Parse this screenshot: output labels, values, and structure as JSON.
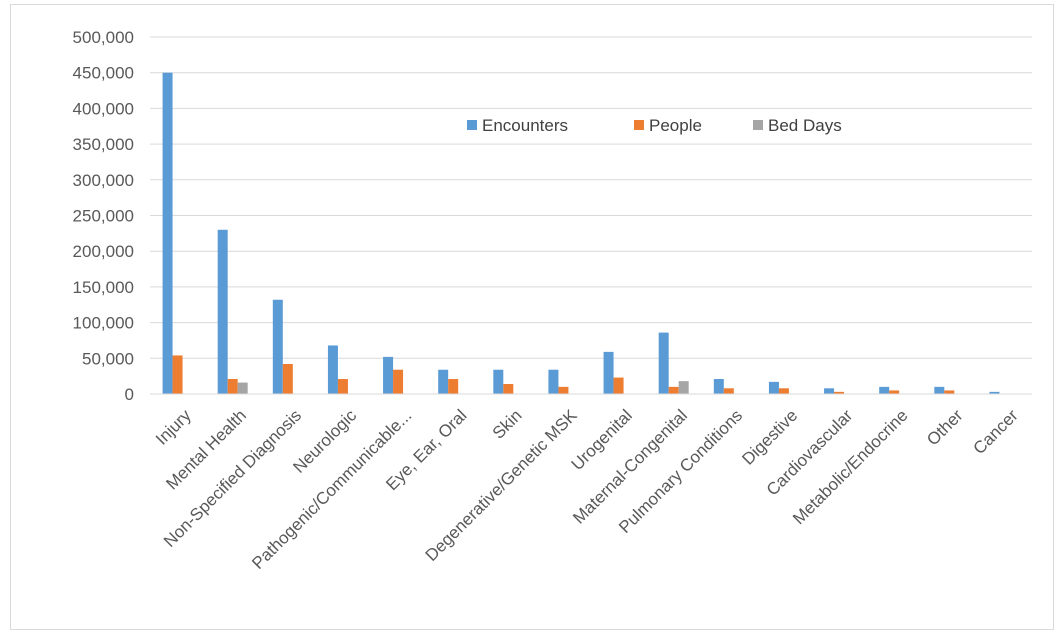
{
  "chart_data": {
    "type": "bar",
    "categories": [
      "Injury",
      "Mental Health",
      "Non-Specified Diagnosis",
      "Neurologic",
      "Pathogenic/Communicable...",
      "Eye, Ear, Oral",
      "Skin",
      "Degenerative/Genetic MSK",
      "Urogenital",
      "Maternal-Congenital",
      "Pulmonary Conditions",
      "Digestive",
      "Cardiovascular",
      "Metabolic/Endocrine",
      "Other",
      "Cancer"
    ],
    "series": [
      {
        "name": "Encounters",
        "color": "#5b9bd5",
        "values": [
          450000,
          230000,
          132000,
          68000,
          52000,
          34000,
          34000,
          34000,
          59000,
          86000,
          21000,
          17000,
          8000,
          10000,
          10000,
          3000
        ]
      },
      {
        "name": "People",
        "color": "#ed7d31",
        "values": [
          54000,
          21000,
          42000,
          21000,
          34000,
          21000,
          14000,
          10000,
          23000,
          10000,
          8000,
          8000,
          3000,
          5000,
          5000,
          0
        ]
      },
      {
        "name": "Bed Days",
        "color": "#a5a5a5",
        "values": [
          0,
          16000,
          0,
          0,
          0,
          0,
          0,
          0,
          0,
          18000,
          0,
          0,
          0,
          0,
          0,
          0
        ]
      }
    ],
    "ylim": [
      0,
      500000
    ],
    "y_ticks": [
      "0",
      "50,000",
      "100,000",
      "150,000",
      "200,000",
      "250,000",
      "300,000",
      "350,000",
      "400,000",
      "450,000",
      "500,000"
    ],
    "grid": true,
    "legend_position": "top-center"
  }
}
